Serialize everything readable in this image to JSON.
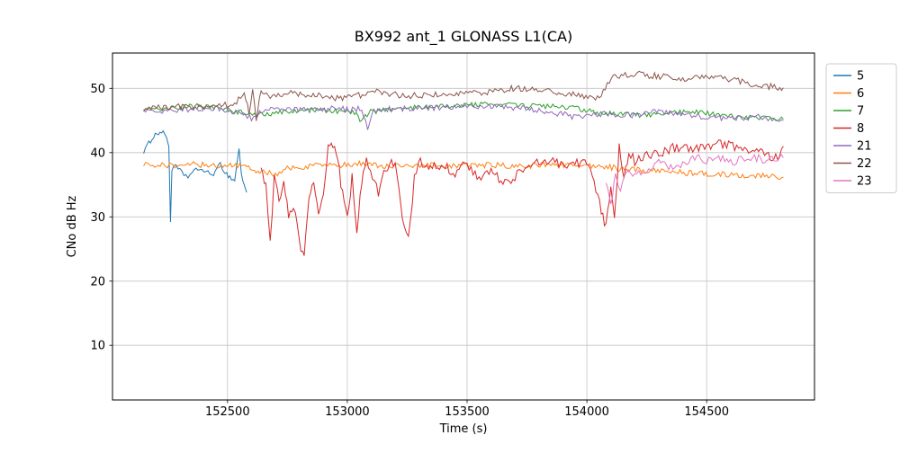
{
  "chart_data": {
    "type": "line",
    "title": "BX992 ant_1 GLONASS L1(CA)",
    "xlabel": "Time (s)",
    "ylabel": "CNo dB Hz",
    "xlim": [
      152020,
      154950
    ],
    "ylim": [
      1.5,
      55.5
    ],
    "x_ticks": [
      152500,
      153000,
      153500,
      154000,
      154500
    ],
    "y_ticks": [
      10,
      20,
      30,
      40,
      50
    ],
    "grid": true,
    "legend_position": "outside-right",
    "series": [
      {
        "name": "5",
        "color": "#1f77b4",
        "noise": 0.4,
        "points": [
          [
            152150,
            40.2
          ],
          [
            152165,
            41.0
          ],
          [
            152185,
            42.3
          ],
          [
            152205,
            43.0
          ],
          [
            152225,
            43.2
          ],
          [
            152245,
            42.6
          ],
          [
            152255,
            41.0
          ],
          [
            152262,
            29.2
          ],
          [
            152268,
            37.5
          ],
          [
            152285,
            37.8
          ],
          [
            152310,
            36.8
          ],
          [
            152335,
            36.3
          ],
          [
            152360,
            37.0
          ],
          [
            152385,
            37.6
          ],
          [
            152410,
            36.9
          ],
          [
            152435,
            36.6
          ],
          [
            152455,
            37.2
          ],
          [
            152470,
            38.3
          ],
          [
            152490,
            36.9
          ],
          [
            152510,
            36.2
          ],
          [
            152530,
            35.6
          ],
          [
            152548,
            40.8
          ],
          [
            152558,
            36.5
          ],
          [
            152570,
            35.0
          ],
          [
            152580,
            33.8
          ]
        ]
      },
      {
        "name": "6",
        "color": "#ff7f0e",
        "noise": 0.45,
        "points": [
          [
            152150,
            38.3
          ],
          [
            152250,
            38.0
          ],
          [
            152350,
            38.2
          ],
          [
            152450,
            38.0
          ],
          [
            152550,
            37.9
          ],
          [
            152650,
            37.0
          ],
          [
            152700,
            36.6
          ],
          [
            152750,
            37.5
          ],
          [
            152850,
            37.9
          ],
          [
            152950,
            38.0
          ],
          [
            153050,
            38.3
          ],
          [
            153150,
            38.0
          ],
          [
            153250,
            37.8
          ],
          [
            153350,
            38.0
          ],
          [
            153450,
            37.9
          ],
          [
            153550,
            38.1
          ],
          [
            153650,
            38.0
          ],
          [
            153750,
            37.9
          ],
          [
            153850,
            38.2
          ],
          [
            153950,
            37.9
          ],
          [
            154050,
            38.0
          ],
          [
            154150,
            37.4
          ],
          [
            154250,
            37.2
          ],
          [
            154350,
            37.0
          ],
          [
            154450,
            36.8
          ],
          [
            154550,
            36.6
          ],
          [
            154650,
            36.4
          ],
          [
            154750,
            36.5
          ],
          [
            154820,
            36.2
          ]
        ]
      },
      {
        "name": "7",
        "color": "#2ca02c",
        "noise": 0.4,
        "points": [
          [
            152150,
            47.0
          ],
          [
            152250,
            46.8
          ],
          [
            152350,
            47.2
          ],
          [
            152450,
            47.0
          ],
          [
            152550,
            46.3
          ],
          [
            152650,
            46.0
          ],
          [
            152750,
            46.4
          ],
          [
            152850,
            46.6
          ],
          [
            152950,
            46.5
          ],
          [
            153030,
            46.2
          ],
          [
            153060,
            44.8
          ],
          [
            153090,
            46.3
          ],
          [
            153150,
            46.6
          ],
          [
            153250,
            47.0
          ],
          [
            153350,
            47.1
          ],
          [
            153450,
            47.3
          ],
          [
            153550,
            47.5
          ],
          [
            153650,
            47.4
          ],
          [
            153750,
            47.3
          ],
          [
            153850,
            47.2
          ],
          [
            153950,
            46.9
          ],
          [
            154050,
            46.2
          ],
          [
            154150,
            45.9
          ],
          [
            154250,
            45.8
          ],
          [
            154350,
            46.2
          ],
          [
            154450,
            46.4
          ],
          [
            154550,
            45.8
          ],
          [
            154650,
            45.5
          ],
          [
            154750,
            45.3
          ],
          [
            154820,
            45.2
          ]
        ]
      },
      {
        "name": "8",
        "color": "#d62728",
        "noise": 0.8,
        "points": [
          [
            152640,
            37.3
          ],
          [
            152660,
            34.8
          ],
          [
            152678,
            25.6
          ],
          [
            152695,
            35.8
          ],
          [
            152715,
            32.8
          ],
          [
            152735,
            35.2
          ],
          [
            152755,
            30.0
          ],
          [
            152775,
            32.0
          ],
          [
            152800,
            26.0
          ],
          [
            152820,
            23.2
          ],
          [
            152840,
            33.0
          ],
          [
            152860,
            35.0
          ],
          [
            152880,
            30.0
          ],
          [
            152900,
            34.0
          ],
          [
            152920,
            40.5
          ],
          [
            152940,
            41.2
          ],
          [
            152960,
            39.0
          ],
          [
            152980,
            33.5
          ],
          [
            153000,
            29.5
          ],
          [
            153020,
            36.0
          ],
          [
            153040,
            28.0
          ],
          [
            153060,
            35.0
          ],
          [
            153080,
            39.0
          ],
          [
            153105,
            36.5
          ],
          [
            153130,
            33.8
          ],
          [
            153160,
            37.5
          ],
          [
            153200,
            38.6
          ],
          [
            153230,
            30.0
          ],
          [
            153255,
            26.2
          ],
          [
            153280,
            36.0
          ],
          [
            153305,
            38.6
          ],
          [
            153340,
            37.4
          ],
          [
            153400,
            38.0
          ],
          [
            153450,
            36.8
          ],
          [
            153500,
            38.4
          ],
          [
            153550,
            35.8
          ],
          [
            153600,
            37.4
          ],
          [
            153650,
            35.4
          ],
          [
            153700,
            36.2
          ],
          [
            153750,
            38.0
          ],
          [
            153800,
            38.6
          ],
          [
            153850,
            39.0
          ],
          [
            153900,
            37.8
          ],
          [
            153950,
            38.6
          ],
          [
            154000,
            38.0
          ],
          [
            154030,
            35.8
          ],
          [
            154060,
            31.0
          ],
          [
            154080,
            28.6
          ],
          [
            154100,
            35.0
          ],
          [
            154115,
            29.8
          ],
          [
            154135,
            40.8
          ],
          [
            154155,
            36.0
          ],
          [
            154175,
            40.4
          ],
          [
            154200,
            38.4
          ],
          [
            154250,
            39.4
          ],
          [
            154300,
            40.0
          ],
          [
            154350,
            40.6
          ],
          [
            154400,
            41.0
          ],
          [
            154450,
            40.4
          ],
          [
            154500,
            41.2
          ],
          [
            154550,
            41.4
          ],
          [
            154600,
            41.0
          ],
          [
            154650,
            40.6
          ],
          [
            154700,
            40.8
          ],
          [
            154750,
            40.0
          ],
          [
            154780,
            38.6
          ],
          [
            154820,
            41.0
          ]
        ]
      },
      {
        "name": "21",
        "color": "#9467bd",
        "noise": 0.45,
        "points": [
          [
            152150,
            46.6
          ],
          [
            152250,
            46.4
          ],
          [
            152350,
            46.8
          ],
          [
            152450,
            47.0
          ],
          [
            152550,
            46.2
          ],
          [
            152600,
            45.4
          ],
          [
            152650,
            46.6
          ],
          [
            152750,
            46.8
          ],
          [
            152850,
            46.6
          ],
          [
            152950,
            46.9
          ],
          [
            153030,
            46.6
          ],
          [
            153060,
            47.0
          ],
          [
            153085,
            43.6
          ],
          [
            153110,
            46.6
          ],
          [
            153200,
            46.8
          ],
          [
            153300,
            47.0
          ],
          [
            153400,
            47.0
          ],
          [
            153500,
            47.2
          ],
          [
            153600,
            47.3
          ],
          [
            153700,
            47.0
          ],
          [
            153800,
            46.5
          ],
          [
            153900,
            46.0
          ],
          [
            153960,
            45.4
          ],
          [
            154020,
            45.8
          ],
          [
            154080,
            46.2
          ],
          [
            154150,
            45.8
          ],
          [
            154250,
            46.0
          ],
          [
            154300,
            46.5
          ],
          [
            154400,
            46.0
          ],
          [
            154500,
            45.5
          ],
          [
            154600,
            45.3
          ],
          [
            154700,
            45.6
          ],
          [
            154820,
            45.0
          ]
        ]
      },
      {
        "name": "22",
        "color": "#8c564b",
        "noise": 0.5,
        "points": [
          [
            152150,
            46.9
          ],
          [
            152250,
            47.1
          ],
          [
            152350,
            47.2
          ],
          [
            152450,
            47.3
          ],
          [
            152530,
            47.6
          ],
          [
            152570,
            49.6
          ],
          [
            152590,
            46.0
          ],
          [
            152605,
            50.2
          ],
          [
            152620,
            44.8
          ],
          [
            152640,
            49.8
          ],
          [
            152670,
            48.6
          ],
          [
            152720,
            49.0
          ],
          [
            152780,
            49.3
          ],
          [
            152850,
            49.0
          ],
          [
            152920,
            48.6
          ],
          [
            152980,
            48.3
          ],
          [
            153040,
            48.8
          ],
          [
            153100,
            49.5
          ],
          [
            153160,
            49.2
          ],
          [
            153240,
            48.8
          ],
          [
            153320,
            48.9
          ],
          [
            153400,
            49.0
          ],
          [
            153480,
            49.2
          ],
          [
            153560,
            49.4
          ],
          [
            153640,
            49.7
          ],
          [
            153700,
            50.0
          ],
          [
            153780,
            49.8
          ],
          [
            153860,
            49.5
          ],
          [
            153920,
            49.2
          ],
          [
            153980,
            48.7
          ],
          [
            154020,
            48.5
          ],
          [
            154060,
            48.8
          ],
          [
            154085,
            50.8
          ],
          [
            154110,
            51.6
          ],
          [
            154160,
            52.0
          ],
          [
            154210,
            52.3
          ],
          [
            154260,
            52.0
          ],
          [
            154320,
            51.8
          ],
          [
            154400,
            51.5
          ],
          [
            154480,
            51.7
          ],
          [
            154560,
            51.6
          ],
          [
            154640,
            51.1
          ],
          [
            154700,
            50.6
          ],
          [
            154760,
            50.3
          ],
          [
            154820,
            50.1
          ]
        ]
      },
      {
        "name": "23",
        "color": "#e377c2",
        "noise": 0.6,
        "points": [
          [
            154080,
            35.8
          ],
          [
            154100,
            31.4
          ],
          [
            154120,
            36.8
          ],
          [
            154140,
            34.0
          ],
          [
            154165,
            37.4
          ],
          [
            154200,
            36.4
          ],
          [
            154250,
            37.5
          ],
          [
            154300,
            38.4
          ],
          [
            154350,
            37.8
          ],
          [
            154400,
            38.2
          ],
          [
            154450,
            39.4
          ],
          [
            154500,
            38.8
          ],
          [
            154550,
            39.2
          ],
          [
            154600,
            38.4
          ],
          [
            154650,
            39.0
          ],
          [
            154700,
            39.3
          ],
          [
            154750,
            38.7
          ],
          [
            154820,
            39.2
          ]
        ]
      }
    ]
  }
}
